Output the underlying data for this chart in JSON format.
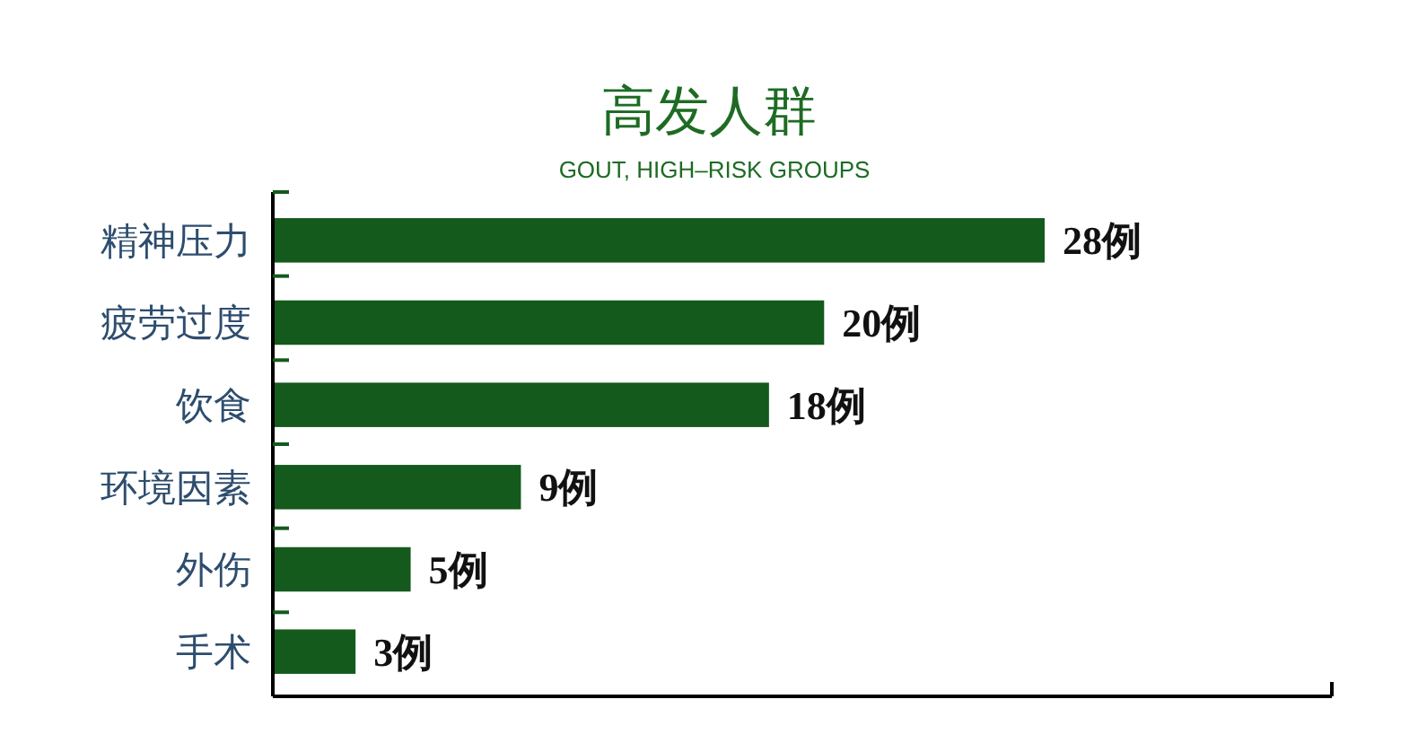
{
  "chart_data": {
    "type": "bar",
    "orientation": "horizontal",
    "title": "高发人群",
    "subtitle": "GOUT, HIGH–RISK GROUPS",
    "categories": [
      "精神压力",
      "疲劳过度",
      "饮食",
      "环境因素",
      "外伤",
      "手术"
    ],
    "values": [
      28,
      20,
      18,
      9,
      5,
      3
    ],
    "value_labels": [
      "28例",
      "20例",
      "18例",
      "9例",
      "5例",
      "3例"
    ],
    "color": "#135a1c"
  }
}
